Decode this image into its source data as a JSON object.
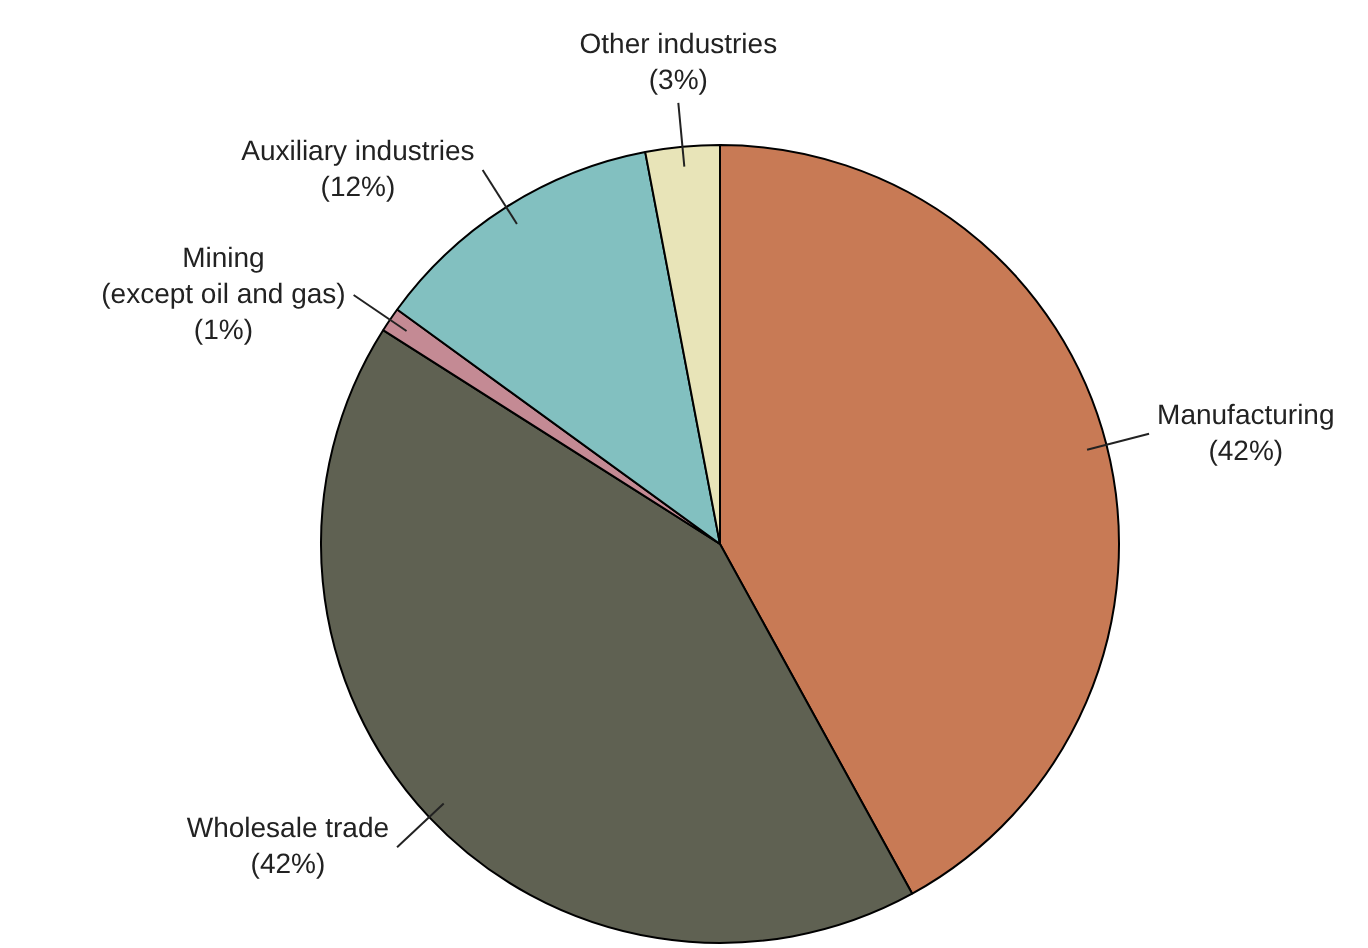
{
  "chart_data": {
    "type": "pie",
    "categories": [
      "Manufacturing",
      "Wholesale trade",
      "Mining (except oil and gas)",
      "Auxiliary industries",
      "Other industries"
    ],
    "values": [
      42,
      42,
      1,
      12,
      3
    ],
    "colors": [
      "#c87a55",
      "#5f6152",
      "#c48a94",
      "#82c0c0",
      "#e8e4b8"
    ],
    "value_labels": [
      "(42%)",
      "(42%)",
      "(1%)",
      "(12%)",
      "(3%)"
    ],
    "legend": false
  }
}
